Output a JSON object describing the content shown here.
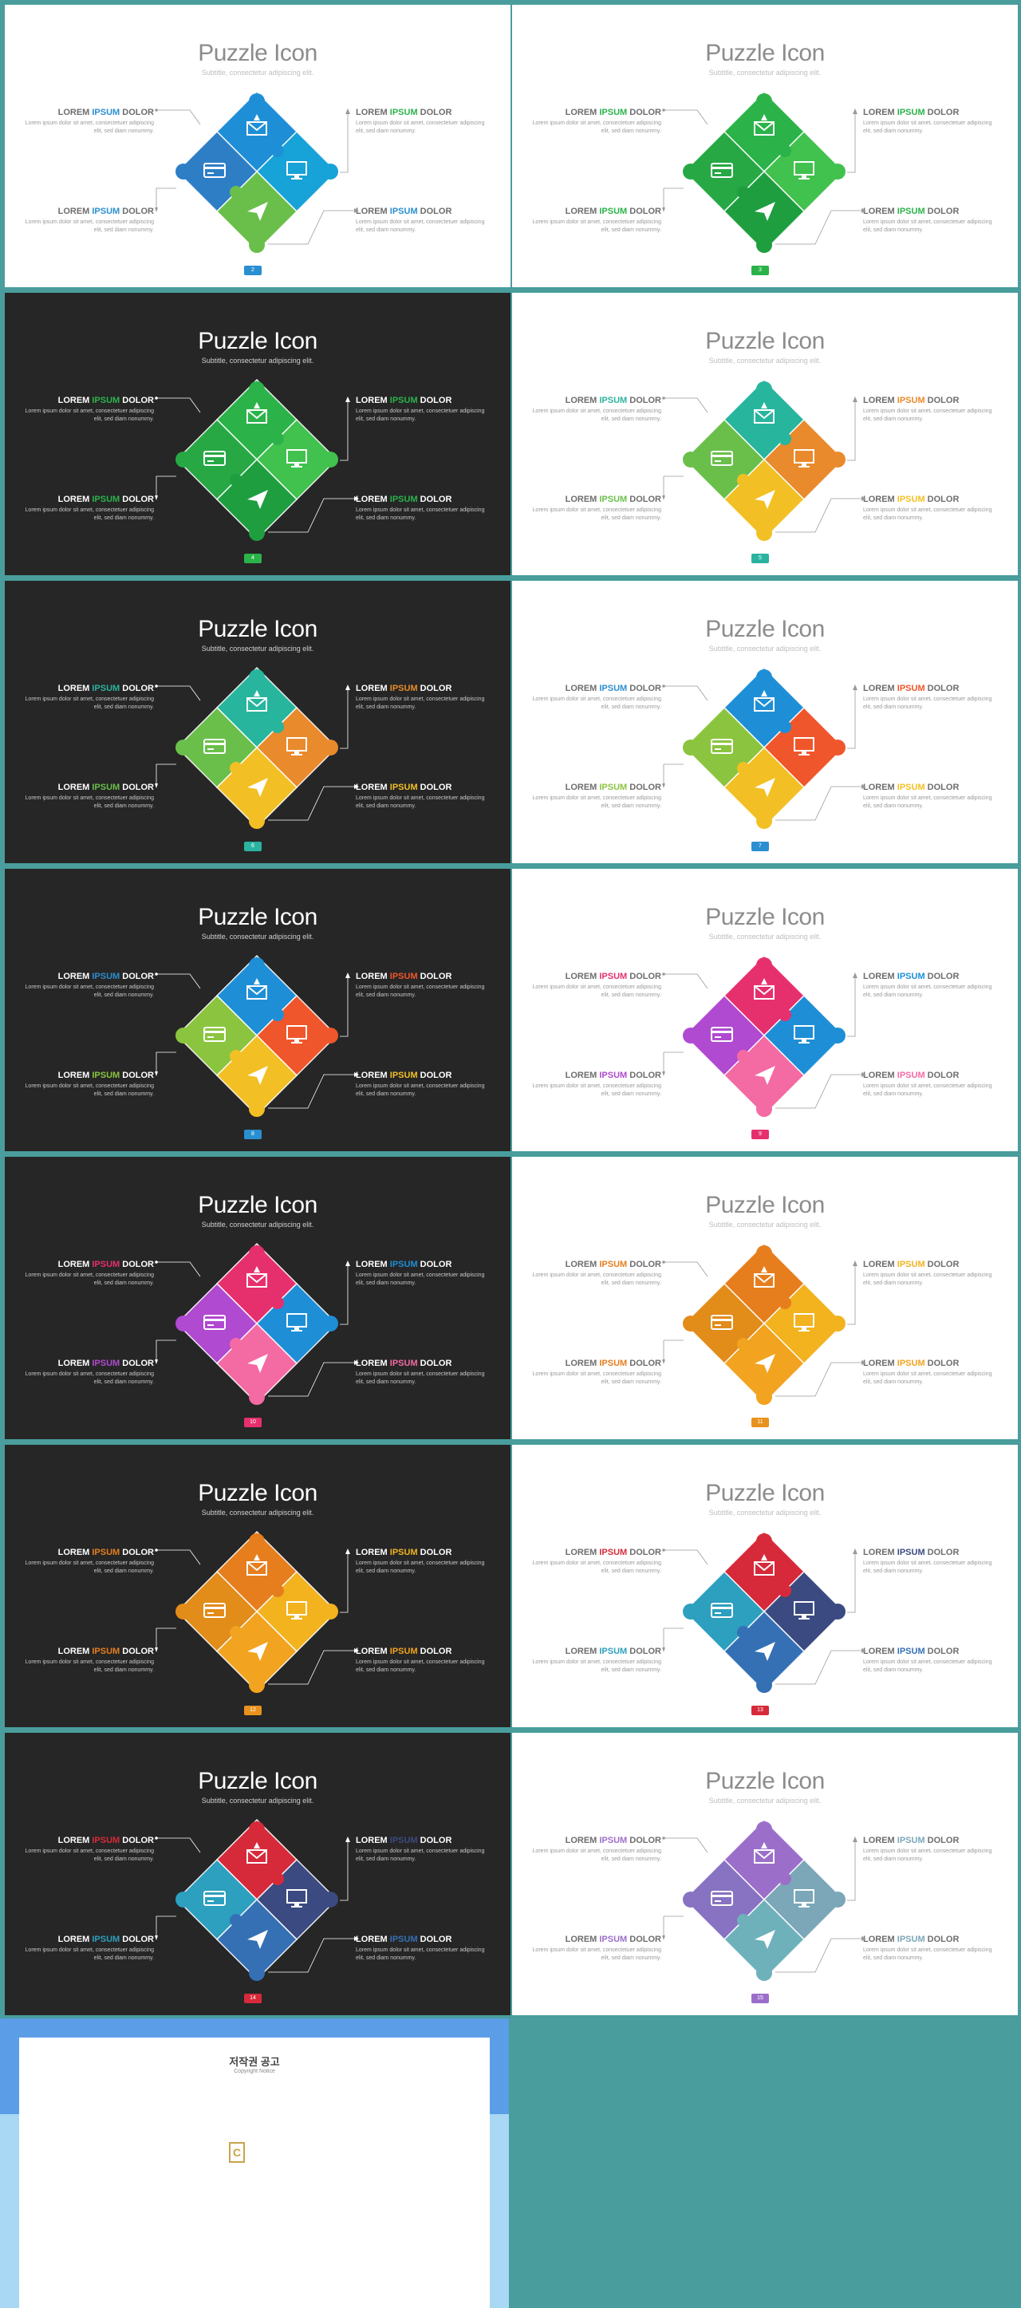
{
  "slides": [
    {
      "theme": "light",
      "page": "2",
      "colors": [
        "#1e8fd6",
        "#2e7ec6",
        "#17a2d8",
        "#6abf4b",
        "#1ab5a3"
      ],
      "accent": "#2a8fd0"
    },
    {
      "theme": "light",
      "page": "3",
      "colors": [
        "#2bb34a",
        "#27a845",
        "#41c14e",
        "#1f9e40",
        "#35b14e"
      ],
      "accent": "#2bb34a"
    },
    {
      "theme": "dark",
      "page": "4",
      "colors": [
        "#2bb34a",
        "#27a845",
        "#41c14e",
        "#1f9e40",
        "#35b14e"
      ],
      "accent": "#2bb34a"
    },
    {
      "theme": "light",
      "page": "5",
      "colors": [
        "#27b59e",
        "#6abf4b",
        "#e98a2c",
        "#f2c024",
        "#27b59e"
      ],
      "accent": "#2ab3a0"
    },
    {
      "theme": "dark",
      "page": "6",
      "colors": [
        "#27b59e",
        "#6abf4b",
        "#e98a2c",
        "#f2c024",
        "#27b59e"
      ],
      "accent": "#2ab3a0"
    },
    {
      "theme": "light",
      "page": "7",
      "colors": [
        "#1e8fd6",
        "#8bc43e",
        "#f0562b",
        "#f2c024",
        "#1e8fd6"
      ],
      "accent": "#2a8fd0"
    },
    {
      "theme": "dark",
      "page": "8",
      "colors": [
        "#1e8fd6",
        "#8bc43e",
        "#f0562b",
        "#f2c024",
        "#1e8fd6"
      ],
      "accent": "#2a8fd0"
    },
    {
      "theme": "light",
      "page": "9",
      "colors": [
        "#e6306e",
        "#b04ad0",
        "#1e8fd6",
        "#f46aa3",
        "#e6306e"
      ],
      "accent": "#e6306e"
    },
    {
      "theme": "dark",
      "page": "10",
      "colors": [
        "#e6306e",
        "#b04ad0",
        "#1e8fd6",
        "#f46aa3",
        "#e6306e"
      ],
      "accent": "#e6306e"
    },
    {
      "theme": "light",
      "page": "11",
      "colors": [
        "#e67e1e",
        "#e28c1a",
        "#f2b31f",
        "#f2a31f",
        "#e67e1e"
      ],
      "accent": "#e8921e"
    },
    {
      "theme": "dark",
      "page": "12",
      "colors": [
        "#e67e1e",
        "#e28c1a",
        "#f2b31f",
        "#f2a31f",
        "#e67e1e"
      ],
      "accent": "#e8921e"
    },
    {
      "theme": "light",
      "page": "13",
      "colors": [
        "#d62a3a",
        "#2d9fbf",
        "#3b4a80",
        "#3570b5",
        "#d62a3a"
      ],
      "accent": "#d62a3a"
    },
    {
      "theme": "dark",
      "page": "14",
      "colors": [
        "#d62a3a",
        "#2d9fbf",
        "#3b4a80",
        "#3570b5",
        "#d62a3a"
      ],
      "accent": "#d62a3a"
    },
    {
      "theme": "light",
      "page": "15",
      "colors": [
        "#9b6fc9",
        "#8872c2",
        "#7ba7b8",
        "#6eb1bb",
        "#9b6fc9"
      ],
      "accent": "#9b6fc9"
    }
  ],
  "common": {
    "title": "Puzzle Icon",
    "subtitle": "Subtitle, consectetur adipiscing elit.",
    "lorem": "LOREM",
    "ipsum": "IPSUM",
    "dolor": "DOLOR",
    "body": "Lorem ipsum dolor sit amet, consectetuer adipiscing elit, sed diam nonummy."
  },
  "ipsum_colors": [
    [
      "#2a8fd0",
      "#2bb34a",
      "#2a8fd0",
      "#2a8fd0"
    ],
    [
      "#2bb34a",
      "#2bb34a",
      "#2bb34a",
      "#2bb34a"
    ],
    [
      "#2bb34a",
      "#2bb34a",
      "#2bb34a",
      "#2bb34a"
    ],
    [
      "#2ab3a0",
      "#e98a2c",
      "#6abf4b",
      "#f2c024"
    ],
    [
      "#2ab3a0",
      "#e98a2c",
      "#6abf4b",
      "#f2c024"
    ],
    [
      "#2a8fd0",
      "#f0562b",
      "#8bc43e",
      "#f2c024"
    ],
    [
      "#2a8fd0",
      "#f0562b",
      "#8bc43e",
      "#f2c024"
    ],
    [
      "#e6306e",
      "#1e8fd6",
      "#b04ad0",
      "#f46aa3"
    ],
    [
      "#e6306e",
      "#1e8fd6",
      "#b04ad0",
      "#f46aa3"
    ],
    [
      "#e67e1e",
      "#f2b31f",
      "#e67e1e",
      "#f2a31f"
    ],
    [
      "#e67e1e",
      "#f2b31f",
      "#e67e1e",
      "#f2a31f"
    ],
    [
      "#d62a3a",
      "#3b4a80",
      "#2d9fbf",
      "#3570b5"
    ],
    [
      "#d62a3a",
      "#3b4a80",
      "#2d9fbf",
      "#3570b5"
    ],
    [
      "#9b6fc9",
      "#7ba7b8",
      "#9b6fc9",
      "#7ba7b8"
    ]
  ],
  "copyright": {
    "title": "저작권 공고",
    "subtitle": "Copyright Notice",
    "paragraphs": [
      "",
      "",
      "",
      "",
      ""
    ]
  }
}
